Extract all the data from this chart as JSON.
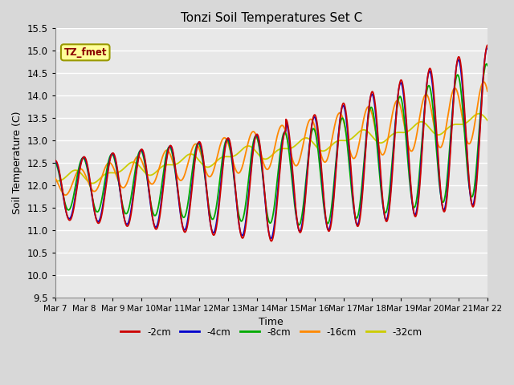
{
  "title": "Tonzi Soil Temperatures Set C",
  "xlabel": "Time",
  "ylabel": "Soil Temperature (C)",
  "ylim": [
    9.5,
    15.5
  ],
  "xlim": [
    0,
    15
  ],
  "fig_width": 6.4,
  "fig_height": 4.8,
  "dpi": 100,
  "bg_color": "#d8d8d8",
  "ax_bg_color": "#e8e8e8",
  "grid_color": "#ffffff",
  "series_colors": {
    "-2cm": "#cc0000",
    "-4cm": "#0000cc",
    "-8cm": "#00aa00",
    "-16cm": "#ff8800",
    "-32cm": "#cccc00"
  },
  "legend_label": "TZ_fmet",
  "legend_bg": "#ffff99",
  "legend_border": "#999900",
  "x_tick_labels": [
    "Mar 7",
    "Mar 8",
    "Mar 9",
    "Mar 10",
    "Mar 11",
    "Mar 12",
    "Mar 13",
    "Mar 14",
    "Mar 15",
    "Mar 16",
    "Mar 17",
    "Mar 18",
    "Mar 19",
    "Mar 20",
    "Mar 21",
    "Mar 22"
  ],
  "x_tick_positions": [
    0,
    1,
    2,
    3,
    4,
    5,
    6,
    7,
    8,
    9,
    10,
    11,
    12,
    13,
    14,
    15
  ],
  "yticks": [
    9.5,
    10.0,
    10.5,
    11.0,
    11.5,
    12.0,
    12.5,
    13.0,
    13.5,
    14.0,
    14.5,
    15.0,
    15.5
  ]
}
